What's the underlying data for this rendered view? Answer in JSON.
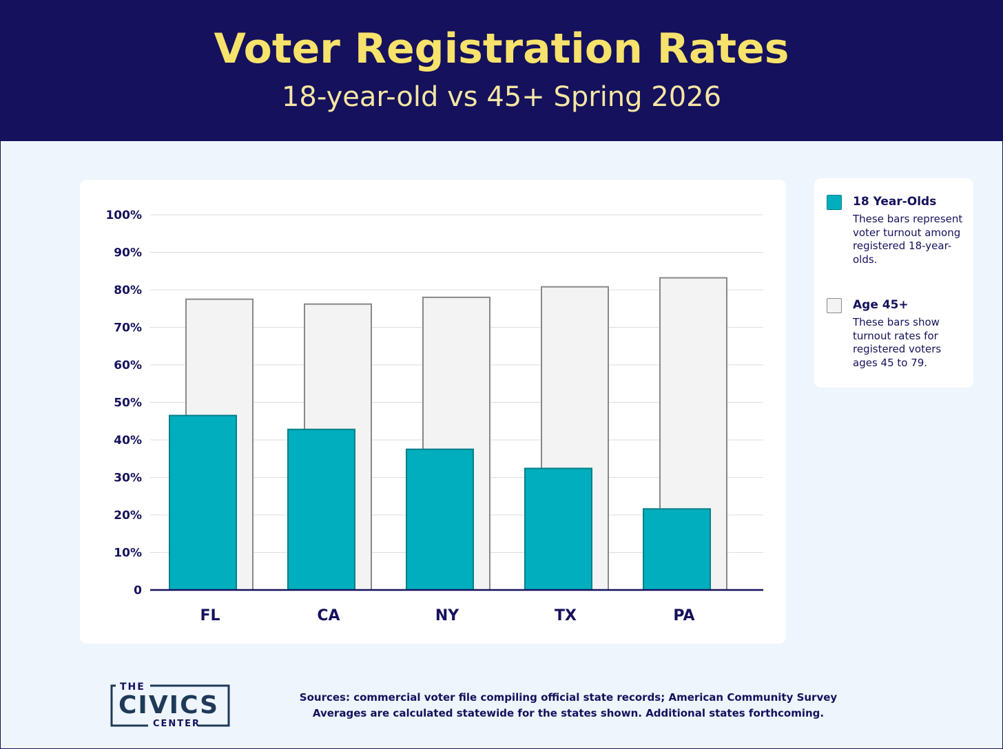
{
  "header": {
    "title": "Voter Registration Rates",
    "subtitle": "18-year-old vs 45+ Spring 2026"
  },
  "chart_data": {
    "type": "bar",
    "categories": [
      "FL",
      "CA",
      "NY",
      "TX",
      "PA"
    ],
    "series": [
      {
        "name": "18 Year-Olds",
        "values": [
          46.5,
          42.8,
          37.5,
          32.4,
          21.6
        ],
        "color": "#00aebd"
      },
      {
        "name": "Age 45+",
        "values": [
          77.5,
          76.2,
          78.0,
          80.8,
          83.2
        ],
        "color": "#f3f3f3"
      }
    ],
    "y_ticks": [
      "0",
      "10%",
      "20%",
      "30%",
      "40%",
      "50%",
      "60%",
      "70%",
      "80%",
      "90%",
      "100%"
    ],
    "ylim": [
      0,
      100
    ],
    "grid": true,
    "legend_position": "right"
  },
  "legend": {
    "items": [
      {
        "label": "18 Year-Olds",
        "description": "These bars represent voter turnout among registered 18-year-olds."
      },
      {
        "label": "Age 45+",
        "description": "These bars show turnout rates for registered voters ages 45 to 79."
      }
    ]
  },
  "logo": {
    "line1": "THE",
    "line2": "CIVICS",
    "line3": "CENTER"
  },
  "footer": {
    "sources": "Sources: commercial voter file compiling official state records; American Community Survey",
    "note": "Averages are calculated statewide for the states shown. Additional states forthcoming."
  },
  "colors": {
    "header_bg": "#15115c",
    "title": "#f7e26b",
    "accent_teal": "#00aebd",
    "bar_gray": "#f3f3f3"
  }
}
